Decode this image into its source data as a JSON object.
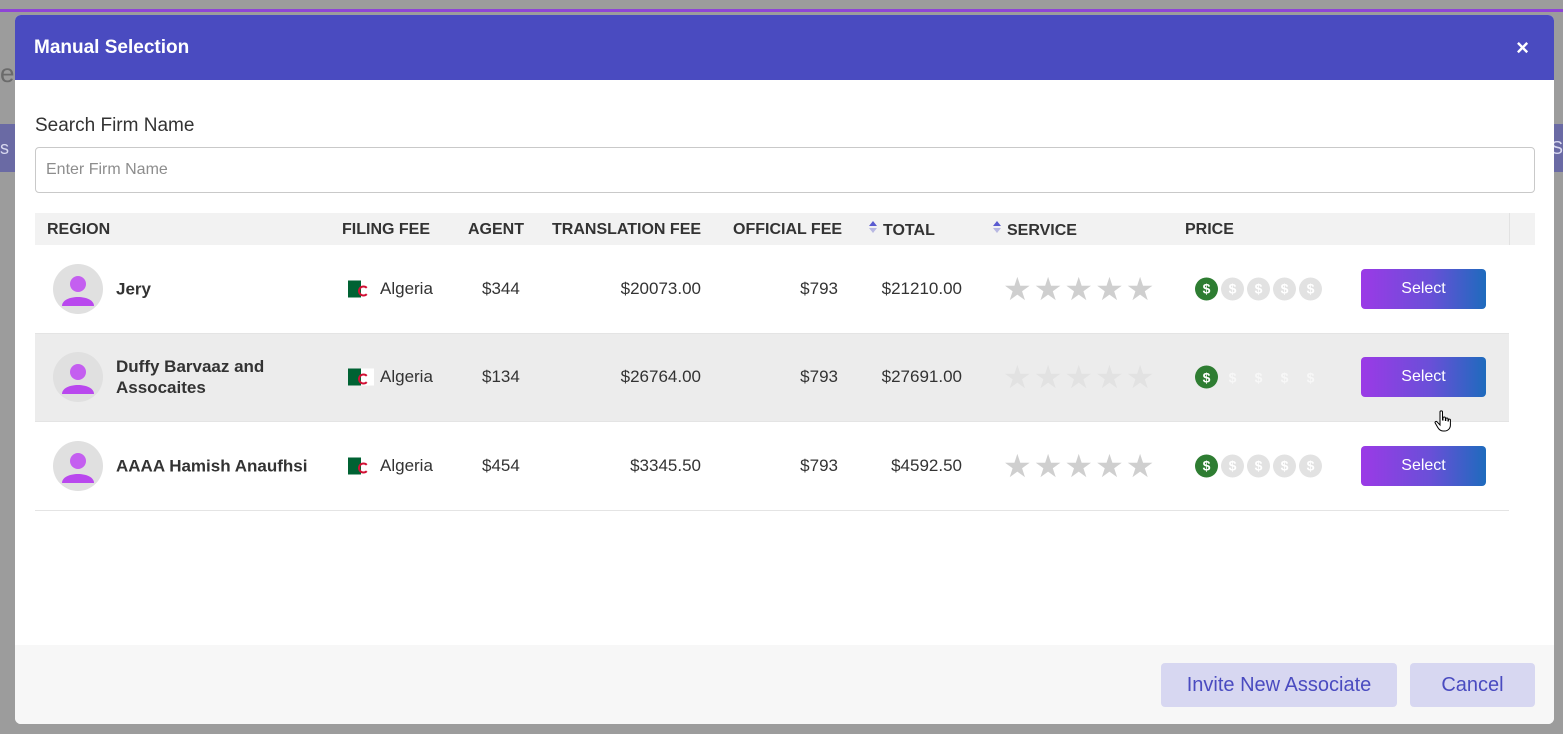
{
  "background": {
    "left_text": "es",
    "band_left": "s",
    "band_right": "S"
  },
  "modal": {
    "title": "Manual Selection",
    "close_label": "×",
    "colors": {
      "header": "#4a4bc0",
      "select_gradient_start": "#9b3ae6",
      "select_gradient_end": "#1e6bbd",
      "price_active": "#2e7d32"
    }
  },
  "search": {
    "label": "Search Firm Name",
    "placeholder": "Enter Firm Name",
    "value": ""
  },
  "table": {
    "headers": {
      "region": "REGION",
      "filing_fee": "FILING FEE",
      "agent": "AGENT",
      "translation_fee": "TRANSLATION FEE",
      "official_fee": "OFFICIAL FEE",
      "total": "TOTAL",
      "service": "SERVICE",
      "price": "PRICE"
    },
    "rows": [
      {
        "name": "Jery",
        "country": "Algeria",
        "agent": "$344",
        "translation_fee": "$20073.00",
        "official_fee": "$793",
        "total": "$21210.00",
        "service_rating": 0,
        "price_level": 1,
        "button": "Select"
      },
      {
        "name": "Duffy Barvaaz and Assocaites",
        "country": "Algeria",
        "agent": "$134",
        "translation_fee": "$26764.00",
        "official_fee": "$793",
        "total": "$27691.00",
        "service_rating": 0,
        "price_level": 1,
        "button": "Select"
      },
      {
        "name": "AAAA Hamish Anaufhsi",
        "country": "Algeria",
        "agent": "$454",
        "translation_fee": "$3345.50",
        "official_fee": "$793",
        "total": "$4592.50",
        "service_rating": 0,
        "price_level": 1,
        "button": "Select"
      }
    ],
    "icons": {
      "sort": "sort-icon",
      "star": "star-icon",
      "coin": "dollar-coin-icon",
      "avatar": "user-avatar-icon",
      "flag": "algeria-flag-icon"
    },
    "coin_symbol": "$",
    "star_symbol": "★"
  },
  "footer": {
    "invite_label": "Invite New Associate",
    "cancel_label": "Cancel"
  }
}
